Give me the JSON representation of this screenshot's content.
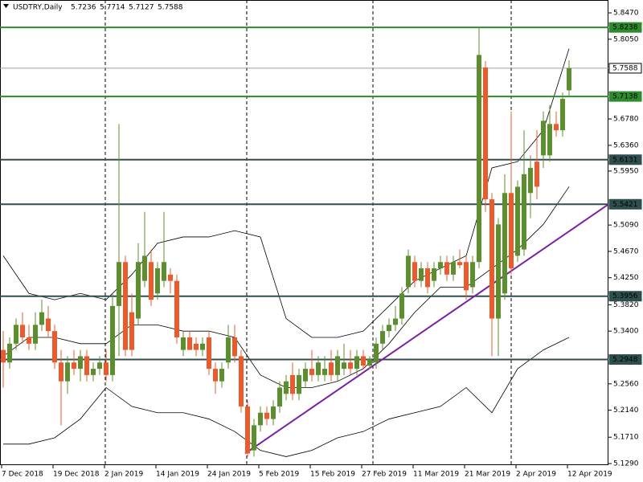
{
  "chart_data": {
    "type": "candlestick",
    "title": "USDTRY,Daily",
    "header_values": [
      5.7236,
      5.7714,
      5.7127,
      5.7588
    ],
    "up_color": "#5b8f2e",
    "down_color": "#ec5a2c",
    "categories": [
      "7 Dec 2018",
      null,
      null,
      null,
      null,
      null,
      null,
      null,
      "19 Dec 2018",
      null,
      null,
      null,
      null,
      null,
      null,
      null,
      "2 Jan 2019",
      null,
      null,
      null,
      null,
      null,
      null,
      null,
      "14 Jan 2019",
      null,
      null,
      null,
      null,
      null,
      null,
      null,
      "24 Jan 2019",
      null,
      null,
      null,
      null,
      null,
      null,
      null,
      "5 Feb 2019",
      null,
      null,
      null,
      null,
      null,
      null,
      null,
      "15 Feb 2019",
      null,
      null,
      null,
      null,
      null,
      null,
      null,
      "27 Feb 2019",
      null,
      null,
      null,
      null,
      null,
      null,
      null,
      "11 Mar 2019",
      null,
      null,
      null,
      null,
      null,
      null,
      null,
      "21 Mar 2019",
      null,
      null,
      null,
      null,
      null,
      null,
      null,
      "2 Apr 2019",
      null,
      null,
      null,
      null,
      null,
      null,
      null,
      "12 Apr 2019"
    ],
    "ohlc": {
      "open": [
        5.31,
        5.29,
        5.32,
        5.35,
        5.33,
        5.32,
        5.35,
        5.36,
        5.34,
        5.29,
        5.26,
        5.29,
        5.28,
        5.3,
        5.27,
        5.28,
        5.29,
        5.27,
        5.38,
        5.45,
        5.37,
        5.36,
        5.42,
        5.45,
        5.4,
        5.42,
        5.43,
        5.42,
        5.31,
        5.33,
        5.32,
        5.31,
        5.33,
        5.28,
        5.26,
        5.29,
        5.33,
        5.3,
        5.22,
        5.15,
        5.19,
        5.21,
        5.2,
        5.22,
        5.24,
        5.27,
        5.24,
        5.26,
        5.28,
        5.27,
        5.27,
        5.29,
        5.27,
        5.28,
        5.29,
        5.28,
        5.3,
        5.285,
        5.29,
        5.32,
        5.34,
        5.35,
        5.36,
        5.41,
        5.45,
        5.42,
        5.44,
        5.42,
        5.44,
        5.45,
        5.43,
        5.45,
        5.45,
        5.41,
        5.45,
        5.76,
        5.55,
        5.36,
        5.4,
        5.56,
        5.46,
        5.47,
        5.56,
        5.61,
        5.62,
        5.62,
        5.67,
        5.66,
        5.7236
      ],
      "high": [
        5.34,
        5.33,
        5.36,
        5.37,
        5.35,
        5.37,
        5.39,
        5.38,
        5.35,
        5.31,
        5.3,
        5.31,
        5.31,
        5.31,
        5.29,
        5.3,
        5.31,
        5.4,
        5.67,
        5.46,
        5.4,
        5.48,
        5.53,
        5.47,
        5.45,
        5.53,
        5.44,
        5.43,
        5.34,
        5.34,
        5.33,
        5.33,
        5.34,
        5.29,
        5.29,
        5.35,
        5.35,
        5.31,
        5.23,
        5.2,
        5.22,
        5.22,
        5.23,
        5.26,
        5.27,
        5.29,
        5.28,
        5.29,
        5.31,
        5.3,
        5.3,
        5.31,
        5.31,
        5.32,
        5.31,
        5.31,
        5.31,
        5.3,
        5.33,
        5.35,
        5.36,
        5.38,
        5.41,
        5.47,
        5.46,
        5.45,
        5.45,
        5.45,
        5.46,
        5.46,
        5.46,
        5.47,
        5.46,
        5.46,
        5.825,
        5.77,
        5.56,
        5.52,
        5.59,
        5.69,
        5.58,
        5.66,
        5.62,
        5.66,
        5.69,
        5.7,
        5.69,
        5.72,
        5.7714
      ],
      "low": [
        5.25,
        5.28,
        5.31,
        5.32,
        5.31,
        5.31,
        5.34,
        5.33,
        5.28,
        5.19,
        5.24,
        5.27,
        5.26,
        5.26,
        5.26,
        5.27,
        5.26,
        5.26,
        5.3,
        5.3,
        5.3,
        5.35,
        5.41,
        5.38,
        5.39,
        5.41,
        5.4,
        5.32,
        5.3,
        5.31,
        5.3,
        5.3,
        5.27,
        5.24,
        5.25,
        5.28,
        5.29,
        5.21,
        5.14,
        5.14,
        5.18,
        5.19,
        5.19,
        5.21,
        5.23,
        5.23,
        5.23,
        5.25,
        5.26,
        5.26,
        5.26,
        5.26,
        5.26,
        5.27,
        5.27,
        5.27,
        5.28,
        5.28,
        5.28,
        5.31,
        5.33,
        5.34,
        5.35,
        5.4,
        5.41,
        5.41,
        5.4,
        5.41,
        5.43,
        5.42,
        5.42,
        5.44,
        5.39,
        5.4,
        5.44,
        5.53,
        5.3,
        5.3,
        5.39,
        5.43,
        5.45,
        5.46,
        5.52,
        5.55,
        5.6,
        5.61,
        5.65,
        5.65,
        5.7127
      ],
      "close": [
        5.29,
        5.32,
        5.35,
        5.33,
        5.32,
        5.35,
        5.37,
        5.34,
        5.29,
        5.26,
        5.29,
        5.28,
        5.3,
        5.27,
        5.28,
        5.29,
        5.27,
        5.38,
        5.45,
        5.31,
        5.31,
        5.45,
        5.46,
        5.39,
        5.44,
        5.45,
        5.42,
        5.33,
        5.33,
        5.31,
        5.31,
        5.32,
        5.28,
        5.26,
        5.28,
        5.33,
        5.3,
        5.22,
        5.145,
        5.19,
        5.21,
        5.2,
        5.22,
        5.25,
        5.26,
        5.24,
        5.27,
        5.28,
        5.27,
        5.29,
        5.28,
        5.27,
        5.3,
        5.29,
        5.28,
        5.3,
        5.285,
        5.295,
        5.32,
        5.34,
        5.35,
        5.36,
        5.4,
        5.46,
        5.42,
        5.44,
        5.41,
        5.44,
        5.45,
        5.43,
        5.45,
        5.445,
        5.405,
        5.45,
        5.78,
        5.55,
        5.36,
        5.51,
        5.56,
        5.44,
        5.57,
        5.59,
        5.6,
        5.57,
        5.675,
        5.67,
        5.66,
        5.71,
        5.7588
      ]
    },
    "bands": [
      {
        "color": "#000000",
        "x": [
          0,
          4,
          8,
          12,
          16,
          20,
          24,
          28,
          32,
          36,
          40,
          44,
          48,
          52,
          56,
          60,
          64,
          68,
          72,
          76,
          80,
          84,
          88
        ],
        "values": [
          5.46,
          5.4,
          5.39,
          5.4,
          5.39,
          5.43,
          5.48,
          5.49,
          5.49,
          5.5,
          5.49,
          5.36,
          5.33,
          5.33,
          5.34,
          5.38,
          5.42,
          5.44,
          5.46,
          5.6,
          5.61,
          5.66,
          5.79
        ]
      },
      {
        "color": "#000000",
        "x": [
          0,
          4,
          8,
          12,
          16,
          20,
          24,
          28,
          32,
          36,
          40,
          44,
          48,
          52,
          56,
          60,
          64,
          68,
          72,
          76,
          80,
          84,
          88
        ],
        "values": [
          5.3,
          5.33,
          5.33,
          5.32,
          5.32,
          5.35,
          5.35,
          5.34,
          5.34,
          5.33,
          5.27,
          5.25,
          5.25,
          5.26,
          5.28,
          5.32,
          5.37,
          5.41,
          5.41,
          5.44,
          5.47,
          5.51,
          5.57
        ]
      },
      {
        "color": "#000000",
        "x": [
          0,
          4,
          8,
          12,
          16,
          20,
          24,
          28,
          32,
          36,
          40,
          44,
          48,
          52,
          56,
          60,
          64,
          68,
          72,
          76,
          80,
          84,
          88
        ],
        "values": [
          5.16,
          5.16,
          5.17,
          5.2,
          5.25,
          5.22,
          5.21,
          5.21,
          5.2,
          5.18,
          5.15,
          5.14,
          5.15,
          5.17,
          5.18,
          5.2,
          5.21,
          5.22,
          5.25,
          5.21,
          5.28,
          5.31,
          5.33
        ]
      }
    ],
    "levels": [
      {
        "value": 5.8238,
        "color": "#2e8b2e"
      },
      {
        "value": 5.7588,
        "color": "#a0a0a0"
      },
      {
        "value": 5.7138,
        "color": "#2e8b2e"
      },
      {
        "value": 5.6131,
        "color": "#2f4f4f"
      },
      {
        "value": 5.5421,
        "color": "#2f4f4f"
      },
      {
        "value": 5.3956,
        "color": "#2f4f4f"
      },
      {
        "value": 5.2948,
        "color": "#2f4f4f"
      }
    ],
    "trendline": {
      "color": "#7b1fa2",
      "values": [
        5.145,
        5.542
      ]
    },
    "ylim": [
      5.1252,
      5.8675
    ],
    "yticks": [
      {
        "value": 5.847,
        "label": "5.8470"
      },
      {
        "value": 5.805,
        "label": "5.8050"
      },
      {
        "value": 5.678,
        "label": "5.6780"
      },
      {
        "value": 5.636,
        "label": "5.6360"
      },
      {
        "value": 5.595,
        "label": "5.5950"
      },
      {
        "value": 5.509,
        "label": "5.5090"
      },
      {
        "value": 5.467,
        "label": "5.4670"
      },
      {
        "value": 5.425,
        "label": "5.4250"
      },
      {
        "value": 5.382,
        "label": "5.3820"
      },
      {
        "value": 5.34,
        "label": "5.3400"
      },
      {
        "value": 5.256,
        "label": "5.2560"
      },
      {
        "value": 5.214,
        "label": "5.2140"
      },
      {
        "value": 5.171,
        "label": "5.1710"
      },
      {
        "value": 5.129,
        "label": "5.1290"
      }
    ]
  }
}
